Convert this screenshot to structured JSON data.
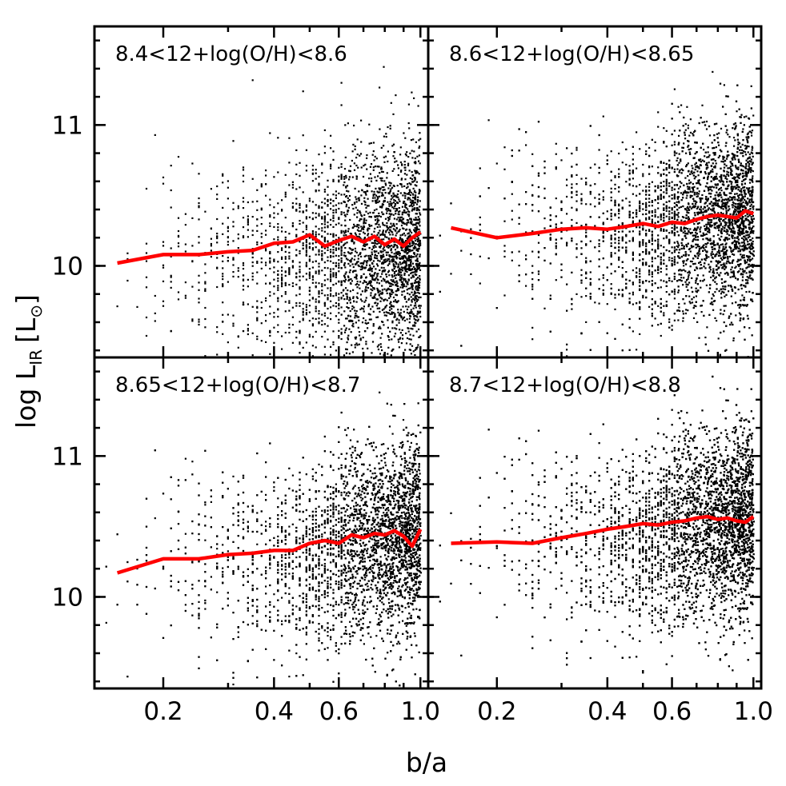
{
  "chart_data": {
    "type": "scatter",
    "layout": "2x2 panels, shared axes",
    "xlabel": "b/a",
    "ylabel": {
      "prefix": "log L",
      "subscript": "IR",
      "unit_open": "[L",
      "unit_sub": "⊙",
      "unit_close": "]"
    },
    "xscale": "log",
    "xlim": [
      0.13,
      1.05
    ],
    "ylim": [
      9.35,
      11.7
    ],
    "x_ticks": [
      0.2,
      0.4,
      0.6,
      1.0
    ],
    "x_tick_labels": [
      "0.2",
      "0.4",
      "0.6",
      "1.0"
    ],
    "y_ticks": [
      10,
      11
    ],
    "y_tick_labels": [
      "10",
      "11"
    ],
    "colors": {
      "points": "#000000",
      "median": "#ff0000",
      "axes": "#000000"
    },
    "panels": [
      {
        "label": "8.4<12+log(O/H)<8.6",
        "n_points": 3000,
        "scatter": {
          "center_at_low": 10.0,
          "center_at_high": 10.1,
          "sigma": 0.38
        },
        "median_x": [
          0.15,
          0.2,
          0.25,
          0.3,
          0.35,
          0.4,
          0.45,
          0.5,
          0.55,
          0.6,
          0.65,
          0.7,
          0.75,
          0.8,
          0.85,
          0.9,
          0.95,
          1.0
        ],
        "median_y": [
          10.02,
          10.08,
          10.08,
          10.1,
          10.11,
          10.16,
          10.17,
          10.22,
          10.14,
          10.18,
          10.21,
          10.17,
          10.21,
          10.15,
          10.19,
          10.14,
          10.2,
          10.24
        ]
      },
      {
        "label": "8.6<12+log(O/H)<8.65",
        "n_points": 4200,
        "scatter": {
          "center_at_low": 10.2,
          "center_at_high": 10.35,
          "sigma": 0.34
        },
        "median_x": [
          0.15,
          0.2,
          0.25,
          0.3,
          0.35,
          0.4,
          0.45,
          0.5,
          0.55,
          0.6,
          0.65,
          0.7,
          0.75,
          0.8,
          0.85,
          0.9,
          0.95,
          1.0
        ],
        "median_y": [
          10.27,
          10.2,
          10.23,
          10.26,
          10.27,
          10.26,
          10.28,
          10.3,
          10.28,
          10.31,
          10.3,
          10.33,
          10.35,
          10.36,
          10.35,
          10.34,
          10.39,
          10.37
        ]
      },
      {
        "label": "8.65<12+log(O/H)<8.7",
        "n_points": 5200,
        "scatter": {
          "center_at_low": 10.2,
          "center_at_high": 10.45,
          "sigma": 0.34
        },
        "median_x": [
          0.15,
          0.2,
          0.25,
          0.3,
          0.35,
          0.4,
          0.45,
          0.5,
          0.55,
          0.6,
          0.65,
          0.7,
          0.75,
          0.8,
          0.85,
          0.9,
          0.95,
          1.0
        ],
        "median_y": [
          10.17,
          10.27,
          10.27,
          10.3,
          10.31,
          10.33,
          10.33,
          10.38,
          10.4,
          10.38,
          10.44,
          10.42,
          10.45,
          10.44,
          10.47,
          10.43,
          10.36,
          10.48
        ]
      },
      {
        "label": "8.7<12+log(O/H)<8.8",
        "n_points": 7000,
        "scatter": {
          "center_at_low": 10.35,
          "center_at_high": 10.55,
          "sigma": 0.34
        },
        "median_x": [
          0.15,
          0.2,
          0.25,
          0.3,
          0.35,
          0.4,
          0.45,
          0.5,
          0.55,
          0.6,
          0.65,
          0.7,
          0.75,
          0.8,
          0.85,
          0.9,
          0.95,
          1.0
        ],
        "median_y": [
          10.38,
          10.39,
          10.38,
          10.42,
          10.45,
          10.48,
          10.5,
          10.52,
          10.51,
          10.53,
          10.54,
          10.56,
          10.57,
          10.55,
          10.56,
          10.54,
          10.53,
          10.57
        ]
      }
    ]
  }
}
